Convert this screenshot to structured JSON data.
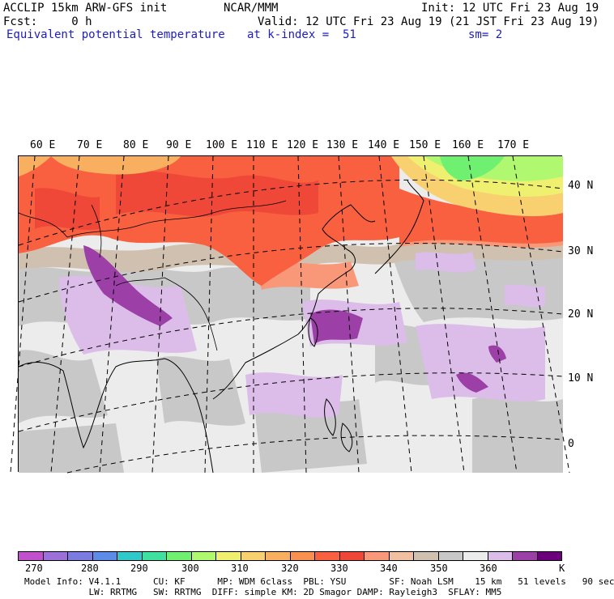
{
  "header": {
    "line1_left": "ACCLIP 15km ARW-GFS init",
    "line1_center": "NCAR/MMM",
    "line1_right": "Init: 12 UTC Fri 23 Aug 19",
    "line2_left": "Fcst:     0 h",
    "line2_right": "Valid: 12 UTC Fri 23 Aug 19 (21 JST Fri 23 Aug 19)",
    "line3_left": "Equivalent potential temperature",
    "line3_center": "at k-index =  51",
    "line3_right": "sm= 2"
  },
  "map": {
    "longitude_labels": [
      "60 E",
      "70 E",
      "80 E",
      "90 E",
      "100 E",
      "110 E",
      "120 E",
      "130 E",
      "140 E",
      "150 E",
      "160 E",
      "170 E"
    ],
    "latitude_labels": [
      "40 N",
      "30 N",
      "20 N",
      "10 N",
      "0"
    ],
    "field": "equivalent potential temperature"
  },
  "colorbar": {
    "colors": [
      "#c050cc",
      "#9c70d8",
      "#7c7ce0",
      "#5c8ce8",
      "#30c8c8",
      "#40e0a0",
      "#70f070",
      "#b0f870",
      "#f0f070",
      "#f8d070",
      "#f8b060",
      "#f89050",
      "#f86040",
      "#f04838",
      "#f89878",
      "#f0c0a0",
      "#d0c0b0",
      "#c8c8c8",
      "#ececec",
      "#dcbce8",
      "#9c40a8",
      "#6c007c"
    ],
    "tick_labels": [
      "270",
      "280",
      "290",
      "300",
      "310",
      "320",
      "330",
      "340",
      "350",
      "360"
    ],
    "unit": "K"
  },
  "footer": {
    "line1": "Model Info: V4.1.1      CU: KF      MP: WDM 6class  PBL: YSU        SF: Noah LSM    15 km   51 levels   90 sec",
    "line2": "            LW: RRTMG   SW: RRTMG  DIFF: simple KM: 2D Smagor DAMP: Rayleigh3  SFLAY: MM5"
  }
}
